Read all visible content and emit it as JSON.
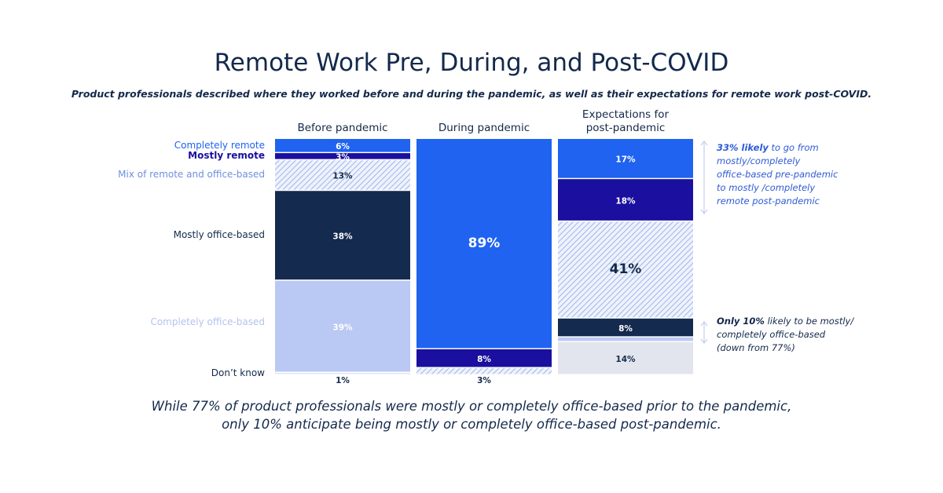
{
  "title": "Remote Work Pre, During, and Post-COVID",
  "subtitle": "Product professionals described where they worked before and during the pandemic, as well as their expectations for remote work post-COVID.",
  "footer": [
    "While 77% of product professionals were mostly or completely office-based prior to the pandemic,",
    "only 10% anticipate being mostly or completely office-based post-pandemic."
  ],
  "annotations": {
    "top": {
      "bold": "33% likely",
      "lines": [
        " to go from",
        "mostly/completely",
        "office-based pre-pandemic",
        "to mostly /completely",
        "remote post-pandemic"
      ],
      "color": "#2e5bd6"
    },
    "bottom": {
      "bold": "Only 10%",
      "lines": [
        " likely to be mostly/",
        "completely office-based",
        "(down from 77%)"
      ],
      "color": "#13294b"
    }
  },
  "chart_data": {
    "type": "bar",
    "stacked": true,
    "percent": true,
    "categories": [
      [
        "Before pandemic"
      ],
      [
        "During pandemic"
      ],
      [
        "Expectations for",
        "post-pandemic"
      ]
    ],
    "series": [
      {
        "name": "Completely remote",
        "values": [
          6,
          89,
          17
        ],
        "labels": [
          "6%",
          "89%",
          "17%"
        ],
        "color": "#1f63f0",
        "label_color": "#1f63f0",
        "hatch": false
      },
      {
        "name": "Mostly remote",
        "values": [
          3,
          8,
          18
        ],
        "labels": [
          "3%",
          "8%",
          "18%"
        ],
        "color": "#1a0f9e",
        "label_color": "#1a0f9e",
        "hatch": false
      },
      {
        "name": "Mix of remote and office-based",
        "values": [
          13,
          3,
          41
        ],
        "labels": [
          "13%",
          "3%",
          "41%"
        ],
        "color": "#cfdaf5",
        "label_color": "#6f8fe0",
        "hatch": true
      },
      {
        "name": "Mostly office-based",
        "values": [
          38,
          0,
          8
        ],
        "labels": [
          "38%",
          "",
          "8%"
        ],
        "color": "#142a4e",
        "label_color": "#13294b",
        "hatch": false
      },
      {
        "name": "Completely office-based",
        "values": [
          39,
          0,
          2
        ],
        "labels": [
          "39%",
          "",
          ""
        ],
        "color": "#bac8f4",
        "label_color": "#b5c3ee",
        "hatch": false
      },
      {
        "name": "Don’t know",
        "values": [
          1,
          0,
          14
        ],
        "labels": [
          "1%",
          "",
          "14%"
        ],
        "color": "#e2e5ee",
        "label_color": "#13294b",
        "hatch": false
      }
    ],
    "ylim": [
      0,
      100
    ]
  }
}
